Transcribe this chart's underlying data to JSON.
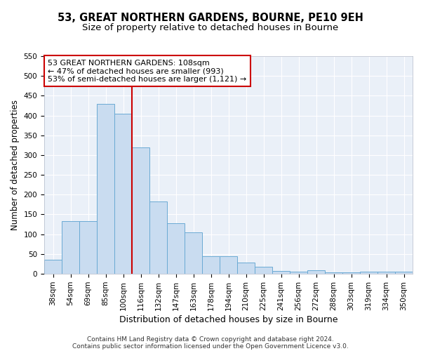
{
  "title1": "53, GREAT NORTHERN GARDENS, BOURNE, PE10 9EH",
  "title2": "Size of property relative to detached houses in Bourne",
  "xlabel": "Distribution of detached houses by size in Bourne",
  "ylabel": "Number of detached properties",
  "categories": [
    "38sqm",
    "54sqm",
    "69sqm",
    "85sqm",
    "100sqm",
    "116sqm",
    "132sqm",
    "147sqm",
    "163sqm",
    "178sqm",
    "194sqm",
    "210sqm",
    "225sqm",
    "241sqm",
    "256sqm",
    "272sqm",
    "288sqm",
    "303sqm",
    "319sqm",
    "334sqm",
    "350sqm"
  ],
  "values": [
    35,
    133,
    133,
    430,
    405,
    320,
    183,
    127,
    105,
    45,
    45,
    29,
    17,
    7,
    5,
    8,
    3,
    3,
    5,
    5,
    5
  ],
  "bar_color": "#c9dcf0",
  "bar_edge_color": "#6aaad4",
  "vline_x_index": 4.5,
  "vline_color": "#cc0000",
  "annotation_text": "53 GREAT NORTHERN GARDENS: 108sqm\n← 47% of detached houses are smaller (993)\n53% of semi-detached houses are larger (1,121) →",
  "annotation_box_color": "#ffffff",
  "annotation_box_edge": "#cc0000",
  "ylim": [
    0,
    550
  ],
  "yticks": [
    0,
    50,
    100,
    150,
    200,
    250,
    300,
    350,
    400,
    450,
    500,
    550
  ],
  "bg_color": "#eaf0f8",
  "footer_line1": "Contains HM Land Registry data © Crown copyright and database right 2024.",
  "footer_line2": "Contains public sector information licensed under the Open Government Licence v3.0.",
  "title1_fontsize": 10.5,
  "title2_fontsize": 9.5,
  "xlabel_fontsize": 9,
  "ylabel_fontsize": 8.5,
  "tick_fontsize": 7.5,
  "annotation_fontsize": 8,
  "footer_fontsize": 6.5
}
